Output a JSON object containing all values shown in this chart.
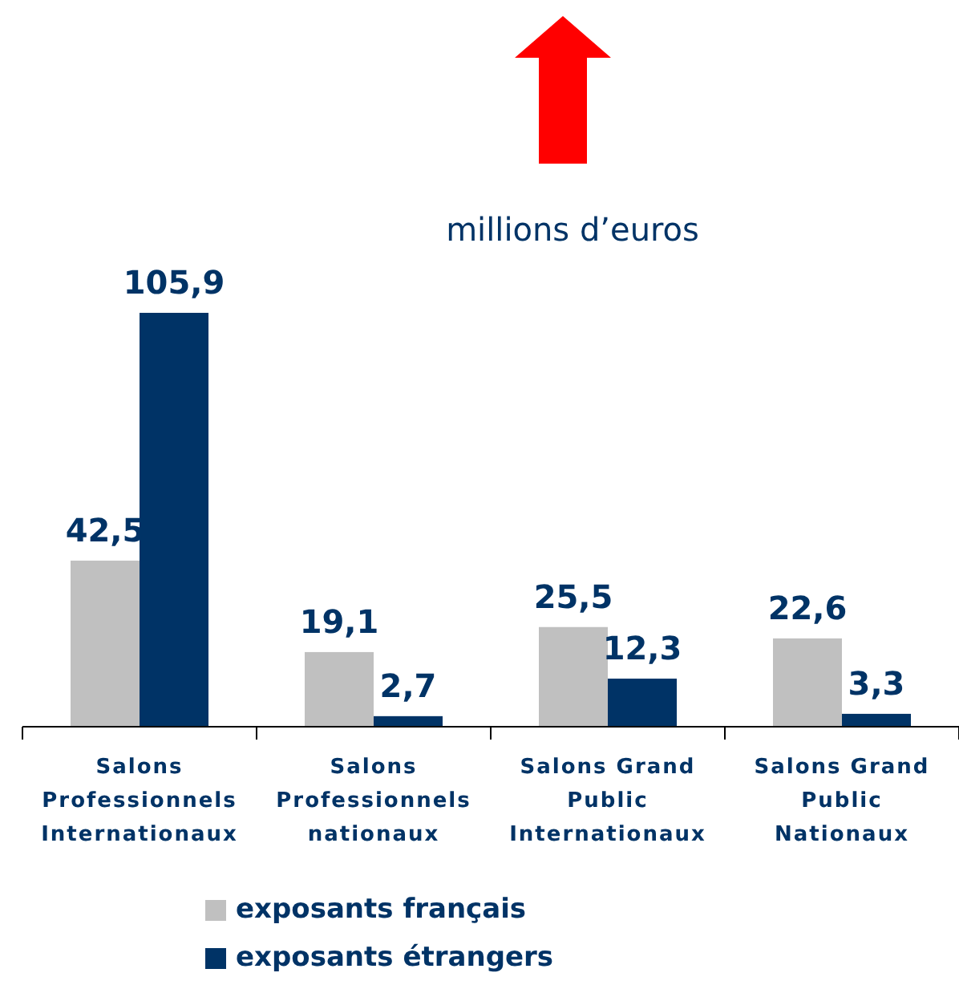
{
  "chart_data": {
    "type": "bar",
    "ylabel": "millions d’euros",
    "categories": [
      "Salons Professionnels Internationaux",
      "Salons Professionnels nationaux",
      "Salons Grand Public Internationaux",
      "Salons Grand Public Nationaux"
    ],
    "series": [
      {
        "name": "exposants français",
        "color": "#c0c0c0",
        "values": [
          42.5,
          19.1,
          25.5,
          22.6
        ],
        "value_labels": [
          "42,5",
          "19,1",
          "25,5",
          "22,6"
        ]
      },
      {
        "name": "exposants étrangers",
        "color": "#003366",
        "values": [
          105.9,
          2.7,
          12.3,
          3.3
        ],
        "value_labels": [
          "105,9",
          "2,7",
          "12,3",
          "3,3"
        ]
      }
    ],
    "legend": "bottom left"
  }
}
